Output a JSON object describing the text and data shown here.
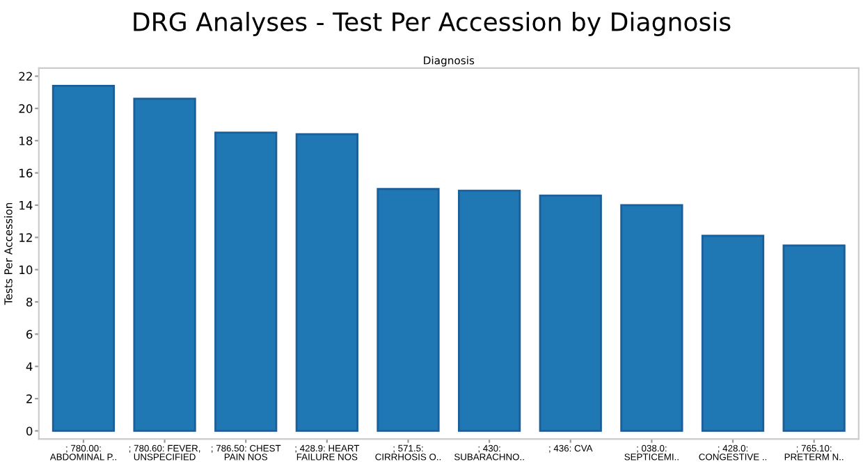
{
  "chart_data": {
    "type": "bar",
    "title": "DRG Analyses - Test Per Accession by Diagnosis",
    "xlabel": "Diagnosis",
    "ylabel": "Tests Per Accession",
    "categories": [
      "; 780.00:\nABDOMINAL P..",
      "; 780.60: FEVER,\nUNSPECIFIED",
      "; 786.50: CHEST\nPAIN NOS",
      "; 428.9: HEART\nFAILURE NOS",
      "; 571.5:\nCIRRHOSIS O..",
      "; 430:\nSUBARACHNO..",
      "; 436: CVA",
      "; 038.0:\nSEPTICEMI..",
      "; 428.0:\nCONGESTIVE ..",
      "; 765.10:\nPRETERM N.."
    ],
    "values": [
      21.4,
      20.6,
      18.5,
      18.4,
      15.0,
      14.9,
      14.6,
      14.0,
      12.1,
      11.5
    ],
    "color": "#1f77b4",
    "ylim": [
      -0.5,
      22.5
    ],
    "yticks": [
      0,
      2,
      4,
      6,
      8,
      10,
      12,
      14,
      16,
      18,
      20,
      22
    ],
    "grid": false
  }
}
